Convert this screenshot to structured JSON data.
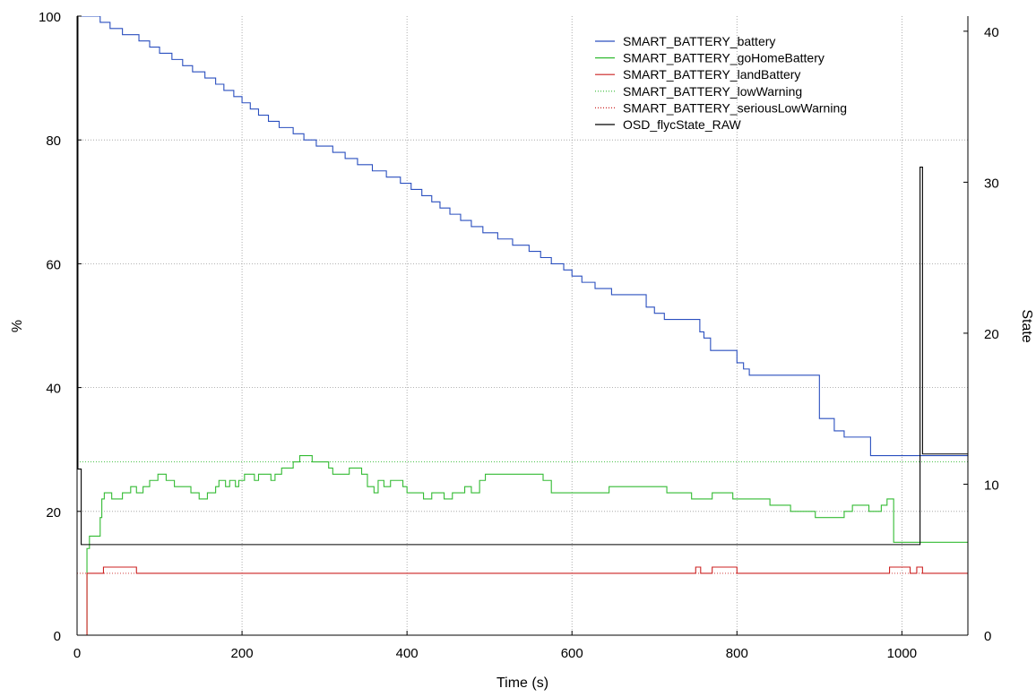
{
  "chart_data": {
    "type": "line",
    "title": "",
    "xlabel": "Time (s)",
    "ylabel": "%",
    "y2label": "State",
    "xlim": [
      0,
      1080
    ],
    "ylim": [
      0,
      100
    ],
    "y2lim": [
      0,
      41
    ],
    "x_ticks": [
      "0",
      "200",
      "400",
      "600",
      "800",
      "1000"
    ],
    "y_ticks": [
      "0",
      "20",
      "40",
      "60",
      "80",
      "100"
    ],
    "y2_ticks": [
      "0",
      "10",
      "20",
      "30",
      "40"
    ],
    "grid": true,
    "legend_position": "top-right",
    "series": [
      {
        "name": "SMART_BATTERY_battery",
        "axis": "left",
        "style": "solid",
        "color": "#2a4fbf",
        "points": [
          [
            0,
            100
          ],
          [
            28,
            100
          ],
          [
            28,
            99
          ],
          [
            40,
            99
          ],
          [
            40,
            98
          ],
          [
            55,
            98
          ],
          [
            55,
            97
          ],
          [
            75,
            97
          ],
          [
            75,
            96
          ],
          [
            88,
            96
          ],
          [
            88,
            95
          ],
          [
            100,
            95
          ],
          [
            100,
            94
          ],
          [
            115,
            94
          ],
          [
            115,
            93
          ],
          [
            128,
            93
          ],
          [
            128,
            92
          ],
          [
            140,
            92
          ],
          [
            140,
            91
          ],
          [
            155,
            91
          ],
          [
            155,
            90
          ],
          [
            168,
            90
          ],
          [
            168,
            89
          ],
          [
            178,
            89
          ],
          [
            178,
            88
          ],
          [
            190,
            88
          ],
          [
            190,
            87
          ],
          [
            200,
            87
          ],
          [
            200,
            86
          ],
          [
            210,
            86
          ],
          [
            210,
            85
          ],
          [
            220,
            85
          ],
          [
            220,
            84
          ],
          [
            232,
            84
          ],
          [
            232,
            83
          ],
          [
            245,
            83
          ],
          [
            245,
            82
          ],
          [
            262,
            82
          ],
          [
            262,
            81
          ],
          [
            275,
            81
          ],
          [
            275,
            80
          ],
          [
            290,
            80
          ],
          [
            290,
            79
          ],
          [
            310,
            79
          ],
          [
            310,
            78
          ],
          [
            325,
            78
          ],
          [
            325,
            77
          ],
          [
            340,
            77
          ],
          [
            340,
            76
          ],
          [
            358,
            76
          ],
          [
            358,
            75
          ],
          [
            375,
            75
          ],
          [
            375,
            74
          ],
          [
            392,
            74
          ],
          [
            392,
            73
          ],
          [
            405,
            73
          ],
          [
            405,
            72
          ],
          [
            418,
            72
          ],
          [
            418,
            71
          ],
          [
            430,
            71
          ],
          [
            430,
            70
          ],
          [
            440,
            70
          ],
          [
            440,
            69
          ],
          [
            452,
            69
          ],
          [
            452,
            68
          ],
          [
            465,
            68
          ],
          [
            465,
            67
          ],
          [
            478,
            67
          ],
          [
            478,
            66
          ],
          [
            492,
            66
          ],
          [
            492,
            65
          ],
          [
            510,
            65
          ],
          [
            510,
            64
          ],
          [
            528,
            64
          ],
          [
            528,
            63
          ],
          [
            548,
            63
          ],
          [
            548,
            62
          ],
          [
            562,
            62
          ],
          [
            562,
            61
          ],
          [
            575,
            61
          ],
          [
            575,
            60
          ],
          [
            590,
            60
          ],
          [
            590,
            59
          ],
          [
            600,
            59
          ],
          [
            600,
            58
          ],
          [
            612,
            58
          ],
          [
            612,
            57
          ],
          [
            628,
            57
          ],
          [
            628,
            56
          ],
          [
            648,
            56
          ],
          [
            648,
            55
          ],
          [
            690,
            55
          ],
          [
            690,
            53
          ],
          [
            700,
            53
          ],
          [
            700,
            52
          ],
          [
            712,
            52
          ],
          [
            712,
            51
          ],
          [
            755,
            51
          ],
          [
            755,
            49
          ],
          [
            760,
            49
          ],
          [
            760,
            48
          ],
          [
            768,
            48
          ],
          [
            768,
            46
          ],
          [
            800,
            46
          ],
          [
            800,
            44
          ],
          [
            808,
            44
          ],
          [
            808,
            43
          ],
          [
            815,
            43
          ],
          [
            815,
            42
          ],
          [
            900,
            42
          ],
          [
            900,
            35
          ],
          [
            918,
            35
          ],
          [
            918,
            33
          ],
          [
            930,
            33
          ],
          [
            930,
            32
          ],
          [
            962,
            32
          ],
          [
            962,
            29
          ],
          [
            1100,
            29
          ]
        ]
      },
      {
        "name": "SMART_BATTERY_goHomeBattery",
        "axis": "left",
        "style": "solid",
        "color": "#33bb33",
        "points": [
          [
            0,
            0
          ],
          [
            12,
            0
          ],
          [
            12,
            14
          ],
          [
            15,
            14
          ],
          [
            15,
            16
          ],
          [
            28,
            16
          ],
          [
            28,
            19
          ],
          [
            30,
            19
          ],
          [
            30,
            22
          ],
          [
            33,
            22
          ],
          [
            33,
            23
          ],
          [
            42,
            23
          ],
          [
            42,
            22
          ],
          [
            55,
            22
          ],
          [
            55,
            23
          ],
          [
            65,
            23
          ],
          [
            65,
            24
          ],
          [
            72,
            24
          ],
          [
            72,
            23
          ],
          [
            80,
            23
          ],
          [
            80,
            24
          ],
          [
            88,
            24
          ],
          [
            88,
            25
          ],
          [
            98,
            25
          ],
          [
            98,
            26
          ],
          [
            108,
            26
          ],
          [
            108,
            25
          ],
          [
            118,
            25
          ],
          [
            118,
            24
          ],
          [
            138,
            24
          ],
          [
            138,
            23
          ],
          [
            148,
            23
          ],
          [
            148,
            22
          ],
          [
            158,
            22
          ],
          [
            158,
            23
          ],
          [
            168,
            23
          ],
          [
            168,
            24
          ],
          [
            172,
            24
          ],
          [
            172,
            25
          ],
          [
            180,
            25
          ],
          [
            180,
            24
          ],
          [
            185,
            24
          ],
          [
            185,
            25
          ],
          [
            192,
            25
          ],
          [
            192,
            24
          ],
          [
            196,
            24
          ],
          [
            196,
            25
          ],
          [
            203,
            25
          ],
          [
            203,
            26
          ],
          [
            215,
            26
          ],
          [
            215,
            25
          ],
          [
            220,
            25
          ],
          [
            220,
            26
          ],
          [
            235,
            26
          ],
          [
            235,
            25
          ],
          [
            240,
            25
          ],
          [
            240,
            26
          ],
          [
            248,
            26
          ],
          [
            248,
            27
          ],
          [
            262,
            27
          ],
          [
            262,
            28
          ],
          [
            270,
            28
          ],
          [
            270,
            29
          ],
          [
            285,
            29
          ],
          [
            285,
            28
          ],
          [
            305,
            28
          ],
          [
            305,
            27
          ],
          [
            310,
            27
          ],
          [
            310,
            26
          ],
          [
            330,
            26
          ],
          [
            330,
            27
          ],
          [
            345,
            27
          ],
          [
            345,
            26
          ],
          [
            352,
            26
          ],
          [
            352,
            24
          ],
          [
            360,
            24
          ],
          [
            360,
            23
          ],
          [
            365,
            23
          ],
          [
            365,
            25
          ],
          [
            372,
            25
          ],
          [
            372,
            24
          ],
          [
            380,
            24
          ],
          [
            380,
            25
          ],
          [
            395,
            25
          ],
          [
            395,
            24
          ],
          [
            400,
            24
          ],
          [
            400,
            23
          ],
          [
            420,
            23
          ],
          [
            420,
            22
          ],
          [
            430,
            22
          ],
          [
            430,
            23
          ],
          [
            445,
            23
          ],
          [
            445,
            22
          ],
          [
            455,
            22
          ],
          [
            455,
            23
          ],
          [
            470,
            23
          ],
          [
            470,
            24
          ],
          [
            478,
            24
          ],
          [
            478,
            23
          ],
          [
            488,
            23
          ],
          [
            488,
            25
          ],
          [
            495,
            25
          ],
          [
            495,
            26
          ],
          [
            565,
            26
          ],
          [
            565,
            25
          ],
          [
            575,
            25
          ],
          [
            575,
            23
          ],
          [
            645,
            23
          ],
          [
            645,
            24
          ],
          [
            715,
            24
          ],
          [
            715,
            23
          ],
          [
            745,
            23
          ],
          [
            745,
            22
          ],
          [
            770,
            22
          ],
          [
            770,
            23
          ],
          [
            795,
            23
          ],
          [
            795,
            22
          ],
          [
            840,
            22
          ],
          [
            840,
            21
          ],
          [
            865,
            21
          ],
          [
            865,
            20
          ],
          [
            895,
            20
          ],
          [
            895,
            19
          ],
          [
            930,
            19
          ],
          [
            930,
            20
          ],
          [
            940,
            20
          ],
          [
            940,
            21
          ],
          [
            960,
            21
          ],
          [
            960,
            20
          ],
          [
            975,
            20
          ],
          [
            975,
            21
          ],
          [
            982,
            21
          ],
          [
            982,
            22
          ],
          [
            990,
            22
          ],
          [
            990,
            15
          ],
          [
            1100,
            15
          ]
        ]
      },
      {
        "name": "SMART_BATTERY_landBattery",
        "axis": "left",
        "style": "solid",
        "color": "#cc2222",
        "points": [
          [
            0,
            0
          ],
          [
            12,
            0
          ],
          [
            12,
            10
          ],
          [
            32,
            10
          ],
          [
            32,
            11
          ],
          [
            72,
            11
          ],
          [
            72,
            10
          ],
          [
            750,
            10
          ],
          [
            750,
            11
          ],
          [
            756,
            11
          ],
          [
            756,
            10
          ],
          [
            770,
            10
          ],
          [
            770,
            11
          ],
          [
            800,
            11
          ],
          [
            800,
            10
          ],
          [
            985,
            10
          ],
          [
            985,
            11
          ],
          [
            1010,
            11
          ],
          [
            1010,
            10
          ],
          [
            1018,
            10
          ],
          [
            1018,
            11
          ],
          [
            1025,
            11
          ],
          [
            1025,
            10
          ],
          [
            1100,
            10
          ]
        ]
      },
      {
        "name": "SMART_BATTERY_lowWarning",
        "axis": "left",
        "style": "dotted",
        "color": "#33bb33",
        "points": [
          [
            0,
            28
          ],
          [
            1100,
            28
          ]
        ]
      },
      {
        "name": "SMART_BATTERY_seriousLowWarning",
        "axis": "left",
        "style": "dotted",
        "color": "#cc2222",
        "points": [
          [
            0,
            10
          ],
          [
            1100,
            10
          ]
        ]
      },
      {
        "name": "OSD_flycState_RAW",
        "axis": "right",
        "style": "solid",
        "color": "#000000",
        "points": [
          [
            0,
            41
          ],
          [
            1,
            41
          ],
          [
            1,
            11
          ],
          [
            5,
            11
          ],
          [
            5,
            6
          ],
          [
            1022,
            6
          ],
          [
            1022,
            31
          ],
          [
            1025,
            31
          ],
          [
            1025,
            12
          ],
          [
            1100,
            12
          ]
        ]
      }
    ]
  }
}
